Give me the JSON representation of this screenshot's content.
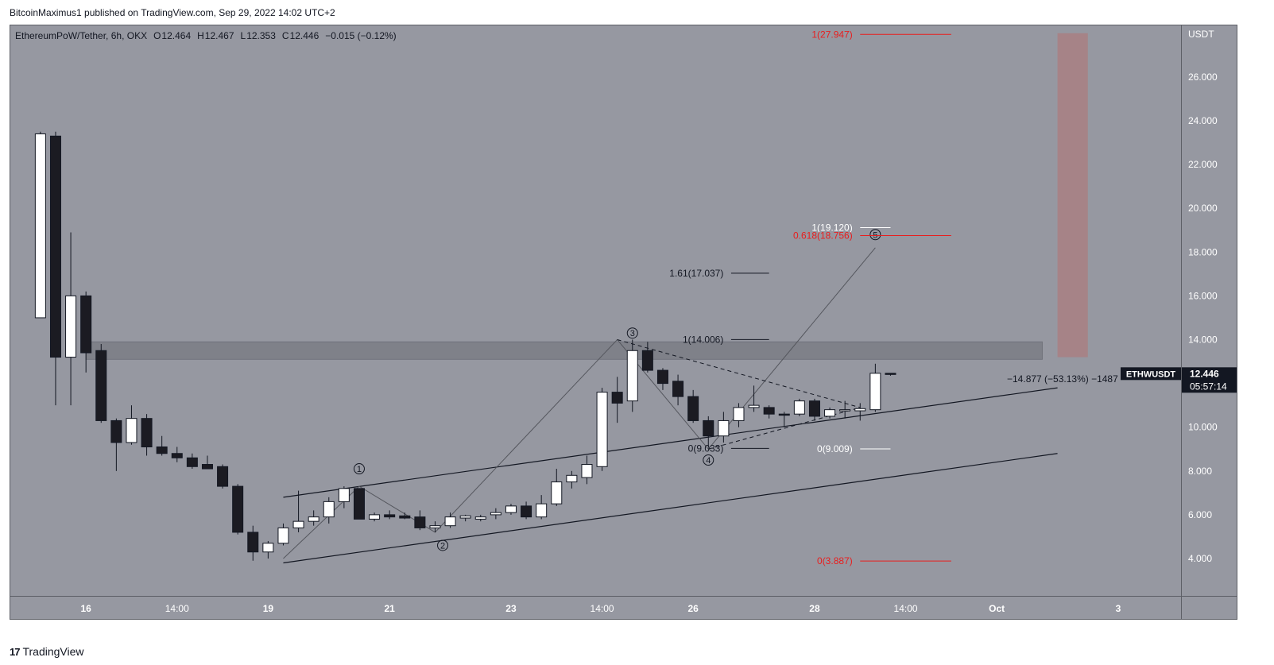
{
  "header": {
    "publisher": "BitcoinMaximus1 published on TradingView.com, Sep 29, 2022 14:02 UTC+2"
  },
  "legend": {
    "symbol": "EthereumPoW/Tether, 6h, OKX",
    "o_label": "O",
    "o_value": "12.464",
    "h_label": "H",
    "h_value": "12.467",
    "l_label": "L",
    "l_value": "12.353",
    "c_label": "C",
    "c_value": "12.446",
    "change": "−0.015 (−0.12%)"
  },
  "footer": {
    "brand": "TradingView",
    "logo": "17"
  },
  "colors": {
    "plot_bg": "#9698a1",
    "band": "#7d7f87",
    "target_zone": "#a68286",
    "fib_red": "#e91e1e",
    "candle_up": "#ffffff",
    "candle_down": "#1b1b22"
  },
  "chart_data": {
    "type": "candlestick",
    "title": "EthereumPoW/Tether, 6h, OKX",
    "timeframe": "6h",
    "currency": "USDT",
    "ylim": [
      2.5,
      28.5
    ],
    "y_ticks": [
      "4.000",
      "6.000",
      "8.000",
      "10.000",
      "12.000",
      "14.000",
      "16.000",
      "18.000",
      "20.000",
      "22.000",
      "24.000",
      "26.000"
    ],
    "x_range": [
      0,
      78
    ],
    "x_ticks": [
      {
        "label": "16",
        "t": 4
      },
      {
        "label": "14:00",
        "t": 10
      },
      {
        "label": "19",
        "t": 16
      },
      {
        "label": "21",
        "t": 24
      },
      {
        "label": "23",
        "t": 32
      },
      {
        "label": "14:00",
        "t": 38
      },
      {
        "label": "26",
        "t": 44
      },
      {
        "label": "28",
        "t": 52
      },
      {
        "label": "14:00",
        "t": 58
      },
      {
        "label": "Oct",
        "t": 64
      },
      {
        "label": "3",
        "t": 72
      }
    ],
    "candles": [
      {
        "t": 1,
        "o": 15.0,
        "h": 23.5,
        "l": 15.0,
        "c": 23.4
      },
      {
        "t": 2,
        "o": 23.3,
        "h": 23.5,
        "l": 11.0,
        "c": 13.2
      },
      {
        "t": 3,
        "o": 13.2,
        "h": 18.9,
        "l": 11.0,
        "c": 16.0
      },
      {
        "t": 4,
        "o": 16.0,
        "h": 16.2,
        "l": 12.5,
        "c": 13.4
      },
      {
        "t": 5,
        "o": 13.5,
        "h": 13.8,
        "l": 10.2,
        "c": 10.3
      },
      {
        "t": 6,
        "o": 10.3,
        "h": 10.4,
        "l": 8.0,
        "c": 9.3
      },
      {
        "t": 7,
        "o": 9.3,
        "h": 11.0,
        "l": 9.2,
        "c": 10.4
      },
      {
        "t": 8,
        "o": 10.4,
        "h": 10.6,
        "l": 8.7,
        "c": 9.1
      },
      {
        "t": 9,
        "o": 9.1,
        "h": 9.6,
        "l": 8.7,
        "c": 8.8
      },
      {
        "t": 10,
        "o": 8.8,
        "h": 9.1,
        "l": 8.4,
        "c": 8.6
      },
      {
        "t": 11,
        "o": 8.6,
        "h": 8.8,
        "l": 8.1,
        "c": 8.2
      },
      {
        "t": 12,
        "o": 8.3,
        "h": 8.7,
        "l": 8.1,
        "c": 8.1
      },
      {
        "t": 13,
        "o": 8.2,
        "h": 8.3,
        "l": 7.2,
        "c": 7.3
      },
      {
        "t": 14,
        "o": 7.3,
        "h": 7.4,
        "l": 5.1,
        "c": 5.2
      },
      {
        "t": 15,
        "o": 5.2,
        "h": 5.5,
        "l": 3.9,
        "c": 4.3
      },
      {
        "t": 16,
        "o": 4.3,
        "h": 4.8,
        "l": 4.0,
        "c": 4.7
      },
      {
        "t": 17,
        "o": 4.7,
        "h": 5.6,
        "l": 4.6,
        "c": 5.4
      },
      {
        "t": 18,
        "o": 5.4,
        "h": 7.1,
        "l": 5.2,
        "c": 5.7
      },
      {
        "t": 19,
        "o": 5.7,
        "h": 6.2,
        "l": 5.5,
        "c": 5.9
      },
      {
        "t": 20,
        "o": 5.9,
        "h": 6.8,
        "l": 5.6,
        "c": 6.6
      },
      {
        "t": 21,
        "o": 6.6,
        "h": 7.3,
        "l": 6.3,
        "c": 7.2
      },
      {
        "t": 22,
        "o": 7.2,
        "h": 7.2,
        "l": 5.8,
        "c": 5.8
      },
      {
        "t": 23,
        "o": 5.8,
        "h": 6.1,
        "l": 5.7,
        "c": 6.0
      },
      {
        "t": 24,
        "o": 6.0,
        "h": 6.2,
        "l": 5.8,
        "c": 5.9
      },
      {
        "t": 25,
        "o": 5.95,
        "h": 6.1,
        "l": 5.8,
        "c": 5.85
      },
      {
        "t": 26,
        "o": 5.9,
        "h": 6.2,
        "l": 5.3,
        "c": 5.4
      },
      {
        "t": 27,
        "o": 5.4,
        "h": 5.7,
        "l": 5.2,
        "c": 5.5
      },
      {
        "t": 28,
        "o": 5.5,
        "h": 6.1,
        "l": 5.4,
        "c": 5.9
      },
      {
        "t": 29,
        "o": 5.85,
        "h": 6.0,
        "l": 5.7,
        "c": 5.95
      },
      {
        "t": 30,
        "o": 5.8,
        "h": 6.0,
        "l": 5.7,
        "c": 5.9
      },
      {
        "t": 31,
        "o": 6.0,
        "h": 6.3,
        "l": 5.8,
        "c": 6.1
      },
      {
        "t": 32,
        "o": 6.1,
        "h": 6.5,
        "l": 6.0,
        "c": 6.4
      },
      {
        "t": 33,
        "o": 6.4,
        "h": 6.6,
        "l": 5.8,
        "c": 5.9
      },
      {
        "t": 34,
        "o": 5.9,
        "h": 6.9,
        "l": 5.8,
        "c": 6.5
      },
      {
        "t": 35,
        "o": 6.5,
        "h": 8.1,
        "l": 6.4,
        "c": 7.5
      },
      {
        "t": 36,
        "o": 7.5,
        "h": 8.0,
        "l": 7.2,
        "c": 7.8
      },
      {
        "t": 37,
        "o": 7.7,
        "h": 8.7,
        "l": 7.4,
        "c": 8.3
      },
      {
        "t": 38,
        "o": 8.2,
        "h": 11.8,
        "l": 8.0,
        "c": 11.6
      },
      {
        "t": 39,
        "o": 11.6,
        "h": 12.3,
        "l": 10.2,
        "c": 11.1
      },
      {
        "t": 40,
        "o": 11.2,
        "h": 14.0,
        "l": 10.7,
        "c": 13.5
      },
      {
        "t": 41,
        "o": 13.5,
        "h": 13.9,
        "l": 12.5,
        "c": 12.6
      },
      {
        "t": 42,
        "o": 12.6,
        "h": 12.7,
        "l": 11.7,
        "c": 12.0
      },
      {
        "t": 43,
        "o": 12.1,
        "h": 12.4,
        "l": 11.0,
        "c": 11.4
      },
      {
        "t": 44,
        "o": 11.4,
        "h": 11.7,
        "l": 10.2,
        "c": 10.3
      },
      {
        "t": 45,
        "o": 10.3,
        "h": 10.5,
        "l": 9.1,
        "c": 9.6
      },
      {
        "t": 46,
        "o": 9.6,
        "h": 10.7,
        "l": 9.3,
        "c": 10.3
      },
      {
        "t": 47,
        "o": 10.3,
        "h": 11.1,
        "l": 10.0,
        "c": 10.9
      },
      {
        "t": 48,
        "o": 10.9,
        "h": 11.9,
        "l": 10.7,
        "c": 11.0
      },
      {
        "t": 49,
        "o": 10.9,
        "h": 11.0,
        "l": 10.4,
        "c": 10.6
      },
      {
        "t": 50,
        "o": 10.6,
        "h": 10.7,
        "l": 10.0,
        "c": 10.55
      },
      {
        "t": 51,
        "o": 10.6,
        "h": 11.3,
        "l": 10.5,
        "c": 11.2
      },
      {
        "t": 52,
        "o": 11.2,
        "h": 11.3,
        "l": 10.3,
        "c": 10.5
      },
      {
        "t": 53,
        "o": 10.5,
        "h": 10.9,
        "l": 10.4,
        "c": 10.8
      },
      {
        "t": 54,
        "o": 10.75,
        "h": 11.2,
        "l": 10.4,
        "c": 10.8
      },
      {
        "t": 55,
        "o": 10.75,
        "h": 11.1,
        "l": 10.3,
        "c": 10.85
      },
      {
        "t": 56,
        "o": 10.8,
        "h": 12.9,
        "l": 10.7,
        "c": 12.464
      },
      {
        "t": 57,
        "o": 12.464,
        "h": 12.467,
        "l": 12.353,
        "c": 12.446
      }
    ],
    "resistance_band": {
      "y1": 13.1,
      "y2": 13.9,
      "t1": 4,
      "t2": 67
    },
    "target_zone": {
      "y1": 13.2,
      "y2": 28.0,
      "t1": 68,
      "t2": 70
    },
    "channel_lines": [
      {
        "t1": 17,
        "v1": 6.8,
        "t2": 68,
        "v2": 11.8
      },
      {
        "t1": 17,
        "v1": 3.8,
        "t2": 68,
        "v2": 8.8
      }
    ],
    "wave_path": [
      {
        "t": 17,
        "v": 4.0
      },
      {
        "t": 22,
        "v": 7.3
      },
      {
        "t": 27,
        "v": 5.2
      },
      {
        "t": 39,
        "v": 14.0
      },
      {
        "t": 45,
        "v": 9.0
      },
      {
        "t": 56,
        "v": 18.2
      }
    ],
    "dashed_lines": [
      {
        "t1": 39,
        "v1": 14.0,
        "t2": 55,
        "v2": 10.9
      },
      {
        "t1": 45,
        "v1": 9.0,
        "t2": 55,
        "v2": 10.9
      }
    ],
    "wave_labels": [
      {
        "text": "1",
        "t": 22,
        "v": 8.1
      },
      {
        "text": "2",
        "t": 27.5,
        "v": 4.6
      },
      {
        "text": "3",
        "t": 40,
        "v": 14.3
      },
      {
        "text": "4",
        "t": 45,
        "v": 8.5
      },
      {
        "text": "5",
        "t": 56,
        "v": 18.8
      }
    ],
    "fib_annotations": [
      {
        "text": "1(27.947)",
        "value": 27.947,
        "color": "red",
        "t_text": 54.5,
        "t1": 55,
        "t2": 61
      },
      {
        "text": "1(19.120)",
        "value": 19.12,
        "color": "white",
        "t_text": 54.5,
        "t1": 55,
        "t2": 57
      },
      {
        "text": "0.618(18.756)",
        "value": 18.756,
        "color": "red",
        "t_text": 54.5,
        "t1": 55,
        "t2": 61
      },
      {
        "text": "1.61(17.037)",
        "value": 17.037,
        "color": "black",
        "t_text": 46,
        "t1": 46.5,
        "t2": 49
      },
      {
        "text": "1(14.006)",
        "value": 14.006,
        "color": "black",
        "t_text": 46,
        "t1": 46.5,
        "t2": 49
      },
      {
        "text": "0(9.033)",
        "value": 9.033,
        "color": "black",
        "t_text": 46,
        "t1": 46.5,
        "t2": 49
      },
      {
        "text": "0(9.009)",
        "value": 9.009,
        "color": "white",
        "t_text": 54.5,
        "t1": 55,
        "t2": 57
      },
      {
        "text": "0(3.887)",
        "value": 3.887,
        "color": "red",
        "t_text": 54.5,
        "t1": 55,
        "t2": 61
      }
    ],
    "measure_text": "−14.877 (−53.13%) −1487",
    "price_tag": {
      "symbol": "ETHWUSDT",
      "price": "12.446",
      "countdown": "05:57:14",
      "value": 12.446
    }
  }
}
